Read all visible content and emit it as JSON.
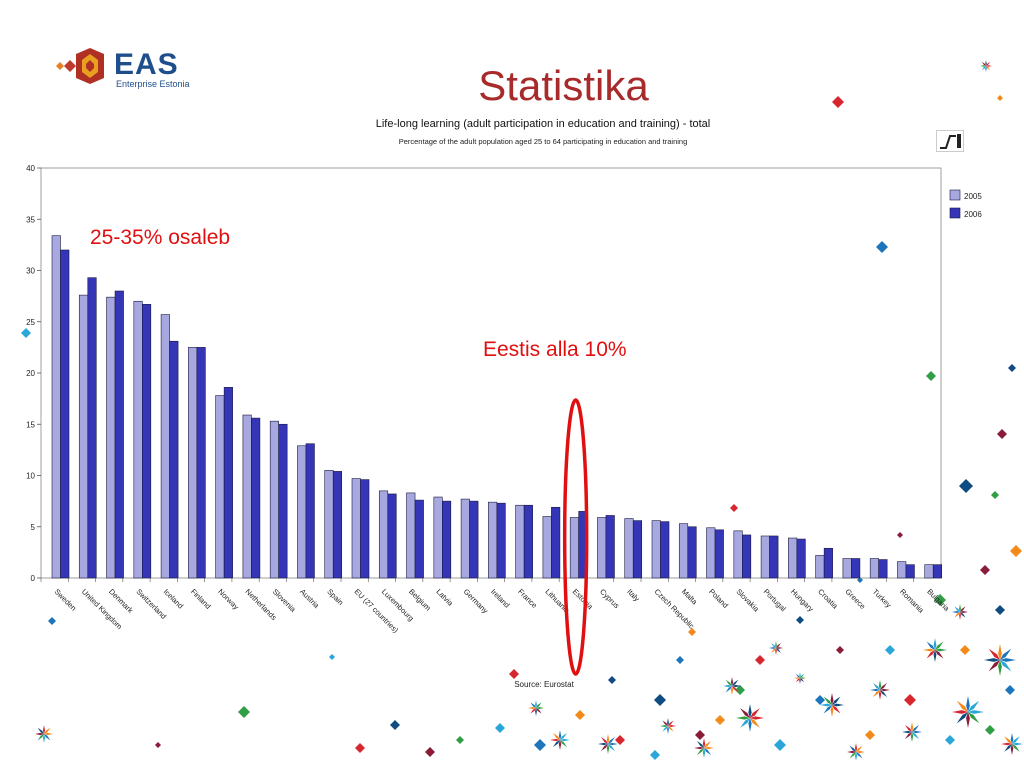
{
  "logo": {
    "word": "EAS",
    "subtitle": "Enterprise Estonia"
  },
  "slide_title": "Statistika",
  "annotations": {
    "left": "25-35% osaleb",
    "estonia": "Eestis alla 10%"
  },
  "colors": {
    "title": "#a82a2a",
    "annotation": "#e01010",
    "series_2005": "#a8a8e0",
    "series_2006": "#3535b8",
    "highlight_ellipse": "#e01010"
  },
  "icons": {
    "tool": "chart-tool-icon"
  },
  "chart_data": {
    "type": "bar",
    "title": "Life-long learning (adult participation in education and training) - total",
    "subtitle": "Percentage of the adult population aged 25 to 64 participating in education and training",
    "source": "Source: Eurostat",
    "categories": [
      "Sweden",
      "United Kingdom",
      "Denmark",
      "Switzerland",
      "Iceland",
      "Finland",
      "Norway",
      "Netherlands",
      "Slovenia",
      "Austria",
      "Spain",
      "EU (27 countries)",
      "Luxembourg",
      "Belgium",
      "Latvia",
      "Germany",
      "Ireland",
      "France",
      "Lithuania",
      "Estonia",
      "Cyprus",
      "Italy",
      "Czech Republic",
      "Malta",
      "Poland",
      "Slovakia",
      "Portugal",
      "Hungary",
      "Croatia",
      "Greece",
      "Turkey",
      "Romania",
      "Bulgaria"
    ],
    "series": [
      {
        "name": "2005",
        "values": [
          33.4,
          27.6,
          27.4,
          27.0,
          25.7,
          22.5,
          17.8,
          15.9,
          15.3,
          12.9,
          10.5,
          9.7,
          8.5,
          8.3,
          7.9,
          7.7,
          7.4,
          7.1,
          6.0,
          5.9,
          5.9,
          5.8,
          5.6,
          5.3,
          4.9,
          4.6,
          4.1,
          3.9,
          2.2,
          1.9,
          1.9,
          1.6,
          1.3
        ]
      },
      {
        "name": "2006",
        "values": [
          32.0,
          29.3,
          28.0,
          26.7,
          23.1,
          22.5,
          18.6,
          15.6,
          15.0,
          13.1,
          10.4,
          9.6,
          8.2,
          7.6,
          7.5,
          7.5,
          7.3,
          7.1,
          6.9,
          6.5,
          6.1,
          5.6,
          5.5,
          5.0,
          4.7,
          4.2,
          4.1,
          3.8,
          2.9,
          1.9,
          1.8,
          1.3,
          1.3
        ]
      }
    ],
    "yticks": [
      "0",
      "5",
      "10",
      "15",
      "20",
      "25",
      "30",
      "35",
      "40"
    ],
    "ylim": [
      0,
      40
    ],
    "grid": false,
    "legend_position": "right",
    "highlight_category": "Estonia"
  }
}
